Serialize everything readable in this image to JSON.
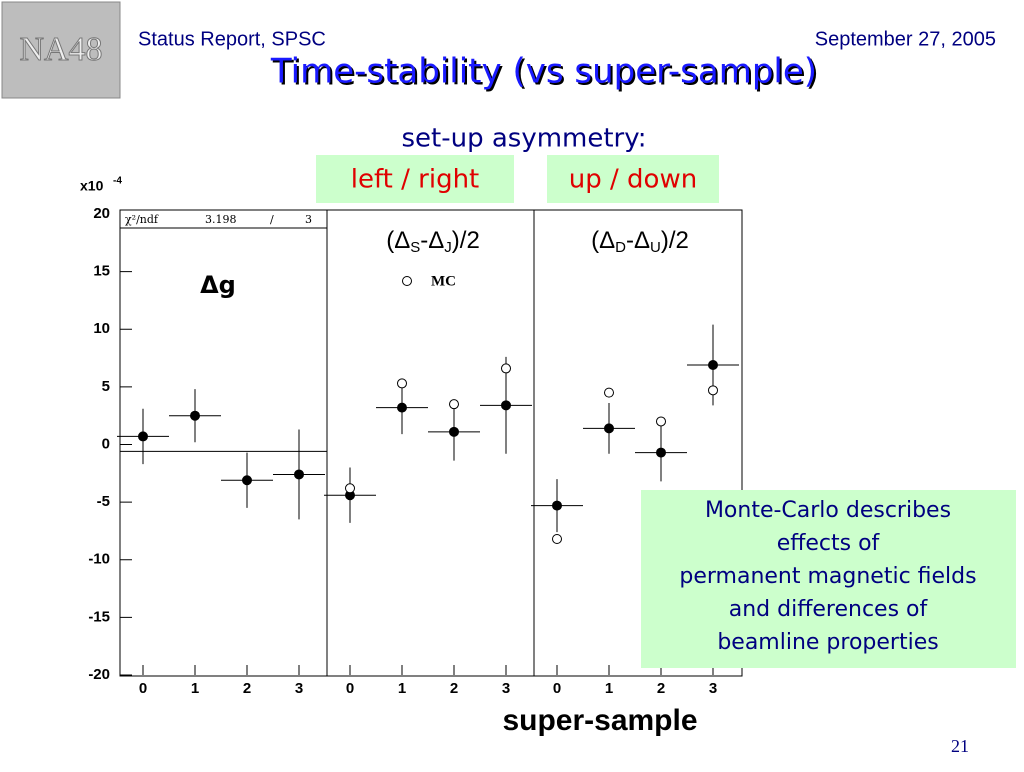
{
  "header": {
    "logo": "NA48",
    "left": "Status Report, SPSC",
    "right": "September 27, 2005",
    "title": "Time-stability (vs super-sample)",
    "subtitle": "set-up asymmetry:",
    "labels": [
      "left / right",
      "up / down"
    ],
    "page": "21"
  },
  "note": [
    "Monte-Carlo describes",
    "effects of",
    "permanent magnetic fields",
    "and differences of",
    "beamline properties"
  ],
  "chart_data": {
    "type": "errorbar",
    "exponent_base": "x10",
    "exponent": "-4",
    "xlabel": "super-sample",
    "ylim": [
      -20,
      20
    ],
    "yticks": [
      20,
      15,
      10,
      5,
      0,
      -5,
      -10,
      -15,
      -20
    ],
    "xticks": [
      0,
      1,
      2,
      3
    ],
    "x": [
      0,
      1,
      2,
      3
    ],
    "panels": [
      {
        "title": "Δg",
        "fit_label": "χ²/ndf",
        "fit_chi2": "3.198",
        "fit_sep": "/",
        "fit_ndf": 3,
        "fit_value": -0.6,
        "series": [
          {
            "marker": "filled",
            "color": "#000000",
            "values": [
              0.7,
              2.5,
              -3.1,
              -2.6
            ],
            "errors": [
              2.4,
              2.3,
              2.4,
              3.9
            ]
          }
        ]
      },
      {
        "title_parts": [
          "(Δ",
          "-Δ",
          ")/2"
        ],
        "title_subs": [
          "S",
          "J"
        ],
        "series": [
          {
            "marker": "filled",
            "color": "#000000",
            "values": [
              -4.4,
              3.2,
              1.1,
              3.4
            ],
            "errors": [
              2.4,
              2.3,
              2.5,
              4.2
            ]
          },
          {
            "name": "MC",
            "marker": "open",
            "color": "#000000",
            "values": [
              -3.8,
              5.3,
              3.5,
              6.6
            ]
          }
        ]
      },
      {
        "title_parts": [
          "(Δ",
          "-Δ",
          ")/2"
        ],
        "title_subs": [
          "D",
          "U"
        ],
        "series": [
          {
            "marker": "filled",
            "color": "#000000",
            "values": [
              -5.3,
              1.4,
              -0.7,
              6.9
            ],
            "errors": [
              2.3,
              2.2,
              2.5,
              3.5
            ]
          },
          {
            "marker": "open",
            "color": "#000000",
            "values": [
              -8.2,
              4.5,
              2.0,
              4.7
            ]
          }
        ]
      }
    ]
  }
}
